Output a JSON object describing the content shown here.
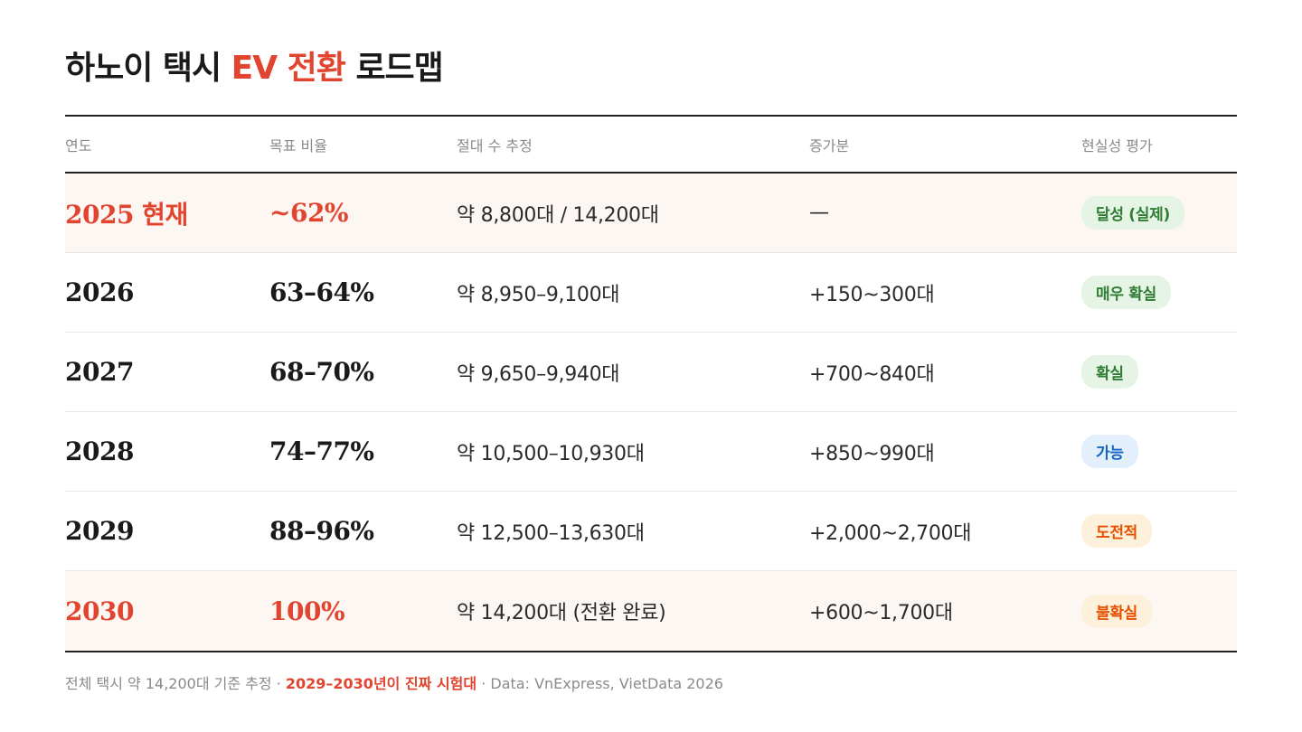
{
  "title": {
    "part1": "하노이 택시 ",
    "accent": "EV 전환",
    "part2": " 로드맵"
  },
  "colors": {
    "accent": "#e2452f",
    "highlight_row_bg": "#fdf7f4",
    "badge_green_bg": "#e6f4e6",
    "badge_green_fg": "#2e7d32",
    "badge_blue_bg": "#e3effb",
    "badge_blue_fg": "#1565c0",
    "badge_orange_bg": "#fdf1dc",
    "badge_orange_fg": "#e65100"
  },
  "table": {
    "headers": [
      "연도",
      "목표 비율",
      "절대 수 추정",
      "증가분",
      "현실성 평가"
    ],
    "rows": [
      {
        "year": "2025 현재",
        "pct": "~62%",
        "count": "약 8,800대 / 14,200대",
        "inc": "—",
        "badge": "달성 (실제)",
        "tone": "green",
        "highlight": true
      },
      {
        "year": "2026",
        "pct": "63–64%",
        "count": "약 8,950–9,100대",
        "inc": "+150~300대",
        "badge": "매우 확실",
        "tone": "green",
        "highlight": false
      },
      {
        "year": "2027",
        "pct": "68–70%",
        "count": "약 9,650–9,940대",
        "inc": "+700~840대",
        "badge": "확실",
        "tone": "green",
        "highlight": false
      },
      {
        "year": "2028",
        "pct": "74–77%",
        "count": "약 10,500–10,930대",
        "inc": "+850~990대",
        "badge": "가능",
        "tone": "blue",
        "highlight": false
      },
      {
        "year": "2029",
        "pct": "88–96%",
        "count": "약 12,500–13,630대",
        "inc": "+2,000~2,700대",
        "badge": "도전적",
        "tone": "orange",
        "highlight": false
      },
      {
        "year": "2030",
        "pct": "100%",
        "count": "약 14,200대 (전환 완료)",
        "inc": "+600~1,700대",
        "badge": "불확실",
        "tone": "orange",
        "highlight": true
      }
    ]
  },
  "footer": {
    "part1": "전체 택시 약 14,200대 기준 추정 · ",
    "emphasis": "2029–2030년이 진짜 시험대",
    "part2": " · Data: VnExpress, VietData 2026"
  }
}
